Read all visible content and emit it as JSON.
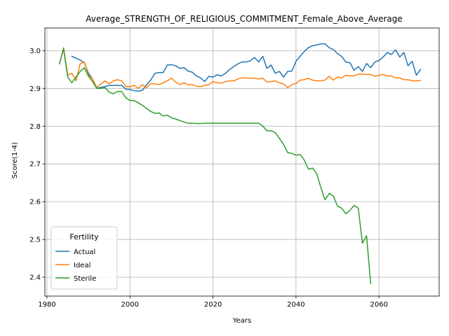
{
  "chart_data": {
    "type": "line",
    "title": "Average_STRENGTH_OF_RELIGIOUS_COMMITMENT_Female_Above_Average",
    "xlabel": "Years",
    "ylabel": "Score(1-4)",
    "xlim": [
      1979.5,
      2074.5
    ],
    "ylim": [
      2.35,
      3.06
    ],
    "xticks": [
      1980,
      2000,
      2020,
      2040,
      2060
    ],
    "yticks": [
      2.4,
      2.5,
      2.6,
      2.7,
      2.8,
      2.9,
      3.0
    ],
    "grid": true,
    "legend": {
      "title": "Fertility",
      "placement": "lower-left"
    },
    "series": [
      {
        "name": "Actual",
        "color": "#1f77b4",
        "points": [
          [
            1986,
            2.985
          ],
          [
            1988,
            2.975
          ],
          [
            1989,
            2.968
          ],
          [
            1990,
            2.94
          ],
          [
            1991,
            2.925
          ],
          [
            1992,
            2.9
          ],
          [
            1993,
            2.903
          ],
          [
            1994,
            2.905
          ],
          [
            1995,
            2.908
          ],
          [
            1996,
            2.908
          ],
          [
            1997,
            2.908
          ],
          [
            1998,
            2.908
          ],
          [
            1999,
            2.898
          ],
          [
            2000,
            2.897
          ],
          [
            2001,
            2.894
          ],
          [
            2002,
            2.893
          ],
          [
            2003,
            2.895
          ],
          [
            2004,
            2.91
          ],
          [
            2005,
            2.922
          ],
          [
            2006,
            2.94
          ],
          [
            2007,
            2.942
          ],
          [
            2008,
            2.942
          ],
          [
            2009,
            2.962
          ],
          [
            2010,
            2.963
          ],
          [
            2011,
            2.96
          ],
          [
            2012,
            2.953
          ],
          [
            2013,
            2.955
          ],
          [
            2014,
            2.946
          ],
          [
            2015,
            2.943
          ],
          [
            2016,
            2.933
          ],
          [
            2017,
            2.928
          ],
          [
            2018,
            2.918
          ],
          [
            2019,
            2.932
          ],
          [
            2020,
            2.93
          ],
          [
            2021,
            2.936
          ],
          [
            2022,
            2.933
          ],
          [
            2023,
            2.94
          ],
          [
            2024,
            2.95
          ],
          [
            2025,
            2.958
          ],
          [
            2026,
            2.965
          ],
          [
            2027,
            2.97
          ],
          [
            2028,
            2.97
          ],
          [
            2029,
            2.973
          ],
          [
            2030,
            2.982
          ],
          [
            2031,
            2.97
          ],
          [
            2032,
            2.985
          ],
          [
            2033,
            2.953
          ],
          [
            2034,
            2.962
          ],
          [
            2035,
            2.94
          ],
          [
            2036,
            2.945
          ],
          [
            2037,
            2.93
          ],
          [
            2038,
            2.945
          ],
          [
            2039,
            2.946
          ],
          [
            2040,
            2.972
          ],
          [
            2041,
            2.985
          ],
          [
            2042,
            2.998
          ],
          [
            2043,
            3.008
          ],
          [
            2044,
            3.013
          ],
          [
            2045,
            3.015
          ],
          [
            2046,
            3.018
          ],
          [
            2047,
            3.018
          ],
          [
            2048,
            3.008
          ],
          [
            2049,
            3.003
          ],
          [
            2050,
            2.992
          ],
          [
            2051,
            2.985
          ],
          [
            2052,
            2.97
          ],
          [
            2053,
            2.968
          ],
          [
            2054,
            2.948
          ],
          [
            2055,
            2.958
          ],
          [
            2056,
            2.945
          ],
          [
            2057,
            2.966
          ],
          [
            2058,
            2.955
          ],
          [
            2059,
            2.97
          ],
          [
            2060,
            2.974
          ],
          [
            2061,
            2.983
          ],
          [
            2062,
            2.995
          ],
          [
            2063,
            2.99
          ],
          [
            2064,
            3.002
          ],
          [
            2065,
            2.983
          ],
          [
            2066,
            2.995
          ],
          [
            2067,
            2.96
          ],
          [
            2068,
            2.972
          ],
          [
            2069,
            2.935
          ],
          [
            2070,
            2.95
          ]
        ]
      },
      {
        "name": "Ideal",
        "color": "#ff7f0e",
        "points": [
          [
            1983,
            2.965
          ],
          [
            1984,
            3.008
          ],
          [
            1985,
            2.935
          ],
          [
            1986,
            2.94
          ],
          [
            1987,
            2.92
          ],
          [
            1988,
            2.965
          ],
          [
            1989,
            2.97
          ],
          [
            1990,
            2.935
          ],
          [
            1991,
            2.925
          ],
          [
            1992,
            2.902
          ],
          [
            1993,
            2.912
          ],
          [
            1994,
            2.92
          ],
          [
            1995,
            2.912
          ],
          [
            1996,
            2.92
          ],
          [
            1997,
            2.923
          ],
          [
            1998,
            2.92
          ],
          [
            1999,
            2.905
          ],
          [
            2000,
            2.905
          ],
          [
            2001,
            2.908
          ],
          [
            2002,
            2.9
          ],
          [
            2003,
            2.91
          ],
          [
            2004,
            2.902
          ],
          [
            2005,
            2.913
          ],
          [
            2006,
            2.912
          ],
          [
            2007,
            2.91
          ],
          [
            2008,
            2.915
          ],
          [
            2009,
            2.92
          ],
          [
            2010,
            2.927
          ],
          [
            2011,
            2.917
          ],
          [
            2012,
            2.91
          ],
          [
            2013,
            2.915
          ],
          [
            2014,
            2.91
          ],
          [
            2015,
            2.91
          ],
          [
            2016,
            2.906
          ],
          [
            2017,
            2.905
          ],
          [
            2018,
            2.908
          ],
          [
            2019,
            2.91
          ],
          [
            2020,
            2.918
          ],
          [
            2021,
            2.915
          ],
          [
            2022,
            2.914
          ],
          [
            2023,
            2.918
          ],
          [
            2024,
            2.92
          ],
          [
            2025,
            2.92
          ],
          [
            2026,
            2.925
          ],
          [
            2027,
            2.928
          ],
          [
            2028,
            2.928
          ],
          [
            2029,
            2.927
          ],
          [
            2030,
            2.927
          ],
          [
            2031,
            2.925
          ],
          [
            2032,
            2.927
          ],
          [
            2033,
            2.917
          ],
          [
            2034,
            2.918
          ],
          [
            2035,
            2.92
          ],
          [
            2036,
            2.915
          ],
          [
            2037,
            2.912
          ],
          [
            2038,
            2.902
          ],
          [
            2039,
            2.91
          ],
          [
            2040,
            2.913
          ],
          [
            2041,
            2.922
          ],
          [
            2042,
            2.923
          ],
          [
            2043,
            2.927
          ],
          [
            2044,
            2.922
          ],
          [
            2045,
            2.92
          ],
          [
            2046,
            2.92
          ],
          [
            2047,
            2.922
          ],
          [
            2048,
            2.932
          ],
          [
            2049,
            2.922
          ],
          [
            2050,
            2.93
          ],
          [
            2051,
            2.928
          ],
          [
            2052,
            2.935
          ],
          [
            2053,
            2.933
          ],
          [
            2054,
            2.933
          ],
          [
            2055,
            2.938
          ],
          [
            2056,
            2.938
          ],
          [
            2057,
            2.937
          ],
          [
            2058,
            2.937
          ],
          [
            2059,
            2.932
          ],
          [
            2060,
            2.935
          ],
          [
            2061,
            2.937
          ],
          [
            2062,
            2.933
          ],
          [
            2063,
            2.933
          ],
          [
            2064,
            2.928
          ],
          [
            2065,
            2.928
          ],
          [
            2066,
            2.923
          ],
          [
            2067,
            2.923
          ],
          [
            2068,
            2.92
          ],
          [
            2069,
            2.92
          ],
          [
            2070,
            2.921
          ]
        ]
      },
      {
        "name": "Sterile",
        "color": "#2ca02c",
        "points": [
          [
            1983,
            2.965
          ],
          [
            1984,
            3.005
          ],
          [
            1985,
            2.93
          ],
          [
            1986,
            2.915
          ],
          [
            1987,
            2.93
          ],
          [
            1988,
            2.945
          ],
          [
            1989,
            2.955
          ],
          [
            1990,
            2.932
          ],
          [
            1991,
            2.918
          ],
          [
            1992,
            2.9
          ],
          [
            1993,
            2.9
          ],
          [
            1994,
            2.902
          ],
          [
            1995,
            2.89
          ],
          [
            1996,
            2.886
          ],
          [
            1997,
            2.892
          ],
          [
            1998,
            2.892
          ],
          [
            1999,
            2.875
          ],
          [
            2000,
            2.868
          ],
          [
            2001,
            2.868
          ],
          [
            2002,
            2.862
          ],
          [
            2003,
            2.855
          ],
          [
            2004,
            2.847
          ],
          [
            2005,
            2.839
          ],
          [
            2006,
            2.834
          ],
          [
            2007,
            2.835
          ],
          [
            2008,
            2.827
          ],
          [
            2009,
            2.829
          ],
          [
            2010,
            2.822
          ],
          [
            2011,
            2.819
          ],
          [
            2012,
            2.815
          ],
          [
            2013,
            2.811
          ],
          [
            2014,
            2.808
          ],
          [
            2015,
            2.808
          ],
          [
            2016,
            2.807
          ],
          [
            2017,
            2.807
          ],
          [
            2018,
            2.808
          ],
          [
            2019,
            2.808
          ],
          [
            2020,
            2.808
          ],
          [
            2021,
            2.808
          ],
          [
            2022,
            2.808
          ],
          [
            2023,
            2.808
          ],
          [
            2024,
            2.808
          ],
          [
            2025,
            2.808
          ],
          [
            2026,
            2.808
          ],
          [
            2027,
            2.808
          ],
          [
            2028,
            2.808
          ],
          [
            2029,
            2.808
          ],
          [
            2030,
            2.808
          ],
          [
            2031,
            2.808
          ],
          [
            2032,
            2.8
          ],
          [
            2033,
            2.788
          ],
          [
            2034,
            2.788
          ],
          [
            2035,
            2.783
          ],
          [
            2036,
            2.768
          ],
          [
            2037,
            2.752
          ],
          [
            2038,
            2.73
          ],
          [
            2039,
            2.728
          ],
          [
            2040,
            2.723
          ],
          [
            2041,
            2.725
          ],
          [
            2042,
            2.71
          ],
          [
            2043,
            2.686
          ],
          [
            2044,
            2.689
          ],
          [
            2045,
            2.674
          ],
          [
            2046,
            2.637
          ],
          [
            2047,
            2.605
          ],
          [
            2048,
            2.622
          ],
          [
            2049,
            2.615
          ],
          [
            2050,
            2.588
          ],
          [
            2051,
            2.583
          ],
          [
            2052,
            2.568
          ],
          [
            2053,
            2.577
          ],
          [
            2054,
            2.59
          ],
          [
            2055,
            2.583
          ],
          [
            2056,
            2.49
          ],
          [
            2057,
            2.51
          ],
          [
            2058,
            2.383
          ]
        ]
      }
    ]
  }
}
